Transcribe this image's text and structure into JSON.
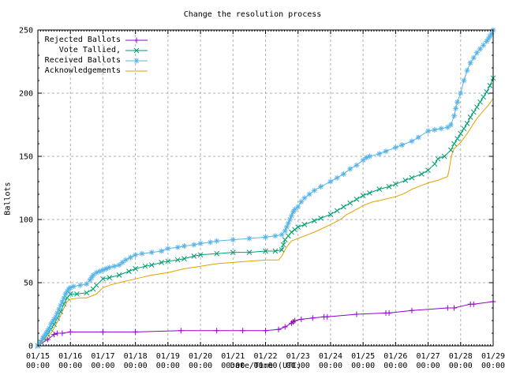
{
  "chart_data": {
    "type": "line",
    "title": "Change the resolution process",
    "xlabel": "Date/Time (UTC)",
    "ylabel": "Ballots",
    "x_unit": "days since 01/15 00:00 UTC",
    "x_tick_dates": [
      "01/15",
      "01/16",
      "01/17",
      "01/18",
      "01/19",
      "01/20",
      "01/21",
      "01/22",
      "01/23",
      "01/24",
      "01/25",
      "01/26",
      "01/27",
      "01/28",
      "01/29"
    ],
    "x_tick_time": "00:00",
    "y_ticks": [
      0,
      50,
      100,
      150,
      200,
      250
    ],
    "xlim_days": [
      0,
      14
    ],
    "ylim": [
      0,
      250
    ],
    "grid": true,
    "legend_position": "top-left-inside",
    "x_minor_ticks_per_day": 12,
    "y_minor_tick_step": 10,
    "grid_color": "#b0b0b0",
    "axis_color": "#000000",
    "series": [
      {
        "name": "Rejected Ballots",
        "color": "#9400d3",
        "marker": "plus",
        "points": [
          [
            0,
            0
          ],
          [
            0.3,
            5
          ],
          [
            0.5,
            9
          ],
          [
            0.6,
            10
          ],
          [
            0.75,
            10
          ],
          [
            1,
            11
          ],
          [
            2,
            11
          ],
          [
            3,
            11
          ],
          [
            4.4,
            12
          ],
          [
            5.5,
            12
          ],
          [
            6.3,
            12
          ],
          [
            7,
            12
          ],
          [
            7.4,
            13
          ],
          [
            7.6,
            15
          ],
          [
            7.8,
            18
          ],
          [
            7.85,
            19
          ],
          [
            7.9,
            20
          ],
          [
            8.1,
            21
          ],
          [
            8.45,
            22
          ],
          [
            8.8,
            23
          ],
          [
            8.9,
            23
          ],
          [
            9.8,
            25
          ],
          [
            10.7,
            26
          ],
          [
            10.8,
            26
          ],
          [
            11.5,
            28
          ],
          [
            12.6,
            30
          ],
          [
            12.8,
            30
          ],
          [
            13.3,
            33
          ],
          [
            13.4,
            33
          ],
          [
            14,
            35
          ]
        ]
      },
      {
        "name": "Vote Tallied,",
        "color": "#009e73",
        "marker": "cross",
        "points": [
          [
            0,
            0
          ],
          [
            0.1,
            3
          ],
          [
            0.2,
            6
          ],
          [
            0.3,
            9
          ],
          [
            0.4,
            13
          ],
          [
            0.5,
            17
          ],
          [
            0.6,
            22
          ],
          [
            0.7,
            27
          ],
          [
            0.8,
            33
          ],
          [
            0.9,
            38
          ],
          [
            1,
            41
          ],
          [
            1.2,
            41
          ],
          [
            1.5,
            42
          ],
          [
            1.7,
            45
          ],
          [
            1.8,
            48
          ],
          [
            2,
            53
          ],
          [
            2.2,
            54
          ],
          [
            2.5,
            56
          ],
          [
            2.8,
            59
          ],
          [
            3,
            61
          ],
          [
            3.3,
            63
          ],
          [
            3.5,
            64
          ],
          [
            3.8,
            66
          ],
          [
            4,
            67
          ],
          [
            4.3,
            68
          ],
          [
            4.5,
            69
          ],
          [
            4.8,
            71
          ],
          [
            5,
            72
          ],
          [
            5.5,
            73
          ],
          [
            6,
            74
          ],
          [
            6.5,
            74
          ],
          [
            7,
            75
          ],
          [
            7.3,
            75
          ],
          [
            7.5,
            76
          ],
          [
            7.55,
            80
          ],
          [
            7.6,
            84
          ],
          [
            7.7,
            87
          ],
          [
            7.8,
            90
          ],
          [
            7.9,
            92
          ],
          [
            8,
            94
          ],
          [
            8.2,
            96
          ],
          [
            8.5,
            99
          ],
          [
            8.7,
            101
          ],
          [
            9,
            104
          ],
          [
            9.2,
            107
          ],
          [
            9.4,
            110
          ],
          [
            9.6,
            113
          ],
          [
            9.8,
            116
          ],
          [
            10,
            119
          ],
          [
            10.2,
            121
          ],
          [
            10.5,
            124
          ],
          [
            10.8,
            126
          ],
          [
            11,
            128
          ],
          [
            11.3,
            131
          ],
          [
            11.5,
            133
          ],
          [
            11.8,
            136
          ],
          [
            12,
            139
          ],
          [
            12.2,
            144
          ],
          [
            12.3,
            148
          ],
          [
            12.5,
            150
          ],
          [
            12.7,
            155
          ],
          [
            12.8,
            160
          ],
          [
            12.9,
            164
          ],
          [
            13,
            168
          ],
          [
            13.1,
            172
          ],
          [
            13.2,
            176
          ],
          [
            13.3,
            181
          ],
          [
            13.4,
            185
          ],
          [
            13.5,
            189
          ],
          [
            13.6,
            193
          ],
          [
            13.7,
            197
          ],
          [
            13.8,
            201
          ],
          [
            13.9,
            206
          ],
          [
            14,
            212
          ]
        ]
      },
      {
        "name": "Received Ballots",
        "color": "#56b4e9",
        "marker": "asterisk",
        "points": [
          [
            0,
            0
          ],
          [
            0.08,
            3
          ],
          [
            0.15,
            6
          ],
          [
            0.2,
            8
          ],
          [
            0.25,
            10
          ],
          [
            0.3,
            12
          ],
          [
            0.35,
            14
          ],
          [
            0.4,
            17
          ],
          [
            0.45,
            19
          ],
          [
            0.5,
            21
          ],
          [
            0.55,
            23
          ],
          [
            0.6,
            26
          ],
          [
            0.65,
            29
          ],
          [
            0.7,
            32
          ],
          [
            0.75,
            35
          ],
          [
            0.8,
            38
          ],
          [
            0.85,
            41
          ],
          [
            0.9,
            43
          ],
          [
            0.95,
            45
          ],
          [
            1,
            46
          ],
          [
            1.1,
            47
          ],
          [
            1.3,
            48
          ],
          [
            1.5,
            49
          ],
          [
            1.6,
            52
          ],
          [
            1.65,
            54
          ],
          [
            1.7,
            56
          ],
          [
            1.8,
            58
          ],
          [
            1.9,
            59
          ],
          [
            2,
            60
          ],
          [
            2.1,
            61
          ],
          [
            2.2,
            62
          ],
          [
            2.35,
            63
          ],
          [
            2.5,
            64
          ],
          [
            2.6,
            66
          ],
          [
            2.7,
            68
          ],
          [
            2.85,
            70
          ],
          [
            3,
            72
          ],
          [
            3.2,
            73
          ],
          [
            3.5,
            74
          ],
          [
            3.8,
            75
          ],
          [
            4,
            77
          ],
          [
            4.3,
            78
          ],
          [
            4.5,
            79
          ],
          [
            4.8,
            80
          ],
          [
            5,
            81
          ],
          [
            5.3,
            82
          ],
          [
            5.5,
            83
          ],
          [
            6,
            84
          ],
          [
            6.5,
            85
          ],
          [
            7,
            86
          ],
          [
            7.3,
            87
          ],
          [
            7.5,
            88
          ],
          [
            7.6,
            91
          ],
          [
            7.65,
            94
          ],
          [
            7.7,
            97
          ],
          [
            7.75,
            100
          ],
          [
            7.8,
            103
          ],
          [
            7.85,
            106
          ],
          [
            7.9,
            108
          ],
          [
            8,
            110
          ],
          [
            8.1,
            114
          ],
          [
            8.2,
            117
          ],
          [
            8.35,
            120
          ],
          [
            8.5,
            123
          ],
          [
            8.7,
            126
          ],
          [
            9,
            130
          ],
          [
            9.2,
            133
          ],
          [
            9.4,
            136
          ],
          [
            9.6,
            140
          ],
          [
            9.8,
            143
          ],
          [
            10,
            147
          ],
          [
            10.1,
            149
          ],
          [
            10.2,
            150
          ],
          [
            10.5,
            152
          ],
          [
            10.7,
            154
          ],
          [
            11,
            157
          ],
          [
            11.2,
            159
          ],
          [
            11.5,
            162
          ],
          [
            11.7,
            165
          ],
          [
            12,
            170
          ],
          [
            12.2,
            171
          ],
          [
            12.4,
            172
          ],
          [
            12.6,
            173
          ],
          [
            12.7,
            175
          ],
          [
            12.8,
            182
          ],
          [
            12.85,
            188
          ],
          [
            12.9,
            193
          ],
          [
            13,
            200
          ],
          [
            13.1,
            210
          ],
          [
            13.2,
            218
          ],
          [
            13.3,
            224
          ],
          [
            13.4,
            228
          ],
          [
            13.5,
            232
          ],
          [
            13.6,
            235
          ],
          [
            13.7,
            238
          ],
          [
            13.8,
            241
          ],
          [
            13.85,
            243
          ],
          [
            13.9,
            245
          ],
          [
            13.95,
            247
          ],
          [
            14,
            250
          ]
        ]
      },
      {
        "name": "Acknowledgements",
        "color": "#e69f00",
        "marker": "none",
        "points": [
          [
            0,
            0
          ],
          [
            0.2,
            4
          ],
          [
            0.4,
            10
          ],
          [
            0.5,
            14
          ],
          [
            0.6,
            19
          ],
          [
            0.7,
            24
          ],
          [
            0.8,
            30
          ],
          [
            0.9,
            35
          ],
          [
            1,
            37
          ],
          [
            1.3,
            38
          ],
          [
            1.5,
            38
          ],
          [
            1.8,
            41
          ],
          [
            2,
            46
          ],
          [
            2.2,
            48
          ],
          [
            2.5,
            50
          ],
          [
            3,
            53
          ],
          [
            3.5,
            56
          ],
          [
            4,
            58
          ],
          [
            4.5,
            61
          ],
          [
            5,
            63
          ],
          [
            5.5,
            65
          ],
          [
            6,
            66
          ],
          [
            6.5,
            67
          ],
          [
            7,
            68
          ],
          [
            7.4,
            68
          ],
          [
            7.5,
            71
          ],
          [
            7.6,
            76
          ],
          [
            7.7,
            80
          ],
          [
            7.8,
            83
          ],
          [
            8,
            85
          ],
          [
            8.3,
            88
          ],
          [
            8.5,
            90
          ],
          [
            9,
            96
          ],
          [
            9.3,
            100
          ],
          [
            9.5,
            104
          ],
          [
            9.8,
            108
          ],
          [
            10,
            111
          ],
          [
            10.3,
            114
          ],
          [
            10.5,
            115
          ],
          [
            11,
            118
          ],
          [
            11.3,
            121
          ],
          [
            11.5,
            124
          ],
          [
            11.8,
            127
          ],
          [
            12,
            129
          ],
          [
            12.3,
            131
          ],
          [
            12.5,
            133
          ],
          [
            12.6,
            134
          ],
          [
            12.65,
            140
          ],
          [
            12.7,
            148
          ],
          [
            12.75,
            153
          ],
          [
            12.8,
            156
          ],
          [
            13,
            161
          ],
          [
            13.2,
            168
          ],
          [
            13.4,
            176
          ],
          [
            13.5,
            180
          ],
          [
            13.7,
            186
          ],
          [
            13.9,
            192
          ],
          [
            14,
            196
          ]
        ]
      }
    ]
  }
}
